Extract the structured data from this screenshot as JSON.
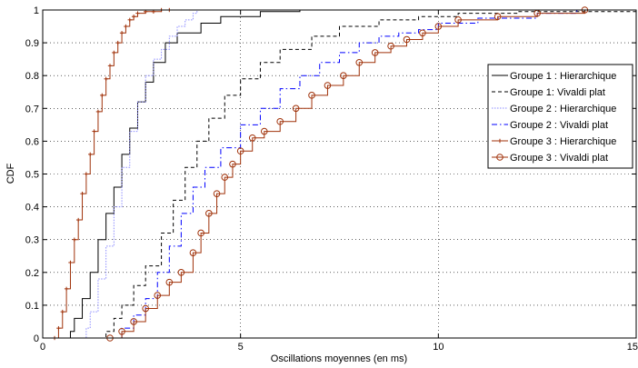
{
  "chart_data": {
    "type": "line",
    "title": "",
    "xlabel": "Oscillations moyennes (en ms)",
    "ylabel": "CDF",
    "xlim": [
      0,
      15
    ],
    "ylim": [
      0,
      1
    ],
    "xticks": [
      0,
      5,
      10,
      15
    ],
    "xtick_labels": [
      "0",
      "5",
      "10",
      "15"
    ],
    "yticks": [
      0,
      0.1,
      0.2,
      0.3,
      0.4,
      0.5,
      0.6,
      0.7,
      0.8,
      0.9,
      1
    ],
    "ytick_labels": [
      "0",
      "0.1",
      "0.2",
      "0.3",
      "0.4",
      "0.5",
      "0.6",
      "0.7",
      "0.8",
      "0.9",
      "1"
    ],
    "grid": true,
    "legend_position": "right",
    "series": [
      {
        "name": "Groupe 1 : Hierarchique",
        "color": "#000000",
        "style": "solid",
        "marker": "none",
        "x": [
          0.6,
          0.7,
          0.8,
          1.0,
          1.2,
          1.4,
          1.6,
          1.8,
          2.0,
          2.2,
          2.4,
          2.6,
          2.8,
          3.1,
          3.4,
          4.0,
          4.5,
          5.5,
          6.5
        ],
        "y": [
          0.0,
          0.02,
          0.06,
          0.12,
          0.2,
          0.3,
          0.38,
          0.46,
          0.56,
          0.64,
          0.72,
          0.78,
          0.84,
          0.9,
          0.93,
          0.96,
          0.98,
          0.995,
          1.0
        ]
      },
      {
        "name": "Groupe 1: Vivaldi plat",
        "color": "#000000",
        "style": "dashed",
        "marker": "none",
        "x": [
          1.3,
          1.6,
          1.8,
          2.0,
          2.3,
          2.6,
          3.0,
          3.3,
          3.6,
          3.9,
          4.2,
          4.6,
          5.0,
          5.5,
          6.0,
          6.8,
          7.5,
          8.5,
          9.5,
          10.5,
          12.0,
          15.0
        ],
        "y": [
          0.0,
          0.02,
          0.06,
          0.1,
          0.16,
          0.22,
          0.32,
          0.42,
          0.52,
          0.6,
          0.67,
          0.74,
          0.79,
          0.84,
          0.88,
          0.92,
          0.95,
          0.97,
          0.98,
          0.99,
          0.995,
          1.0
        ]
      },
      {
        "name": "Groupe 2 : Hierarchique",
        "color": "#8c8cff",
        "style": "dotted",
        "marker": "none",
        "x": [
          0.9,
          1.1,
          1.2,
          1.4,
          1.6,
          1.8,
          2.0,
          2.2,
          2.4,
          2.6,
          2.8,
          3.0,
          3.2,
          3.4,
          3.6,
          3.8,
          3.9
        ],
        "y": [
          0.0,
          0.03,
          0.08,
          0.18,
          0.28,
          0.4,
          0.52,
          0.63,
          0.72,
          0.8,
          0.85,
          0.88,
          0.92,
          0.95,
          0.97,
          0.99,
          1.0
        ]
      },
      {
        "name": "Groupe 2 : Vivaldi plat",
        "color": "#0000ff",
        "style": "dashdot",
        "marker": "none",
        "x": [
          1.7,
          2.0,
          2.3,
          2.6,
          2.9,
          3.2,
          3.5,
          3.8,
          4.1,
          4.5,
          5.0,
          5.5,
          6.0,
          6.5,
          7.0,
          7.5,
          8.0,
          8.5,
          9.0,
          9.5,
          10.0,
          11.0,
          12.5,
          13.5
        ],
        "y": [
          0.0,
          0.03,
          0.07,
          0.12,
          0.2,
          0.28,
          0.38,
          0.46,
          0.52,
          0.58,
          0.65,
          0.7,
          0.76,
          0.8,
          0.84,
          0.87,
          0.9,
          0.92,
          0.93,
          0.94,
          0.96,
          0.975,
          0.99,
          1.0
        ]
      },
      {
        "name": "Groupe 3 : Hierarchique",
        "color": "#a0320a",
        "style": "solid",
        "marker": "plus",
        "x": [
          0.3,
          0.4,
          0.5,
          0.6,
          0.7,
          0.8,
          0.9,
          1.0,
          1.1,
          1.2,
          1.3,
          1.4,
          1.5,
          1.6,
          1.7,
          1.8,
          1.9,
          2.0,
          2.1,
          2.2,
          2.3,
          2.4,
          2.6,
          2.8,
          3.0,
          3.2
        ],
        "y": [
          0.0,
          0.03,
          0.08,
          0.15,
          0.23,
          0.3,
          0.36,
          0.44,
          0.5,
          0.56,
          0.63,
          0.69,
          0.74,
          0.79,
          0.83,
          0.87,
          0.9,
          0.93,
          0.95,
          0.97,
          0.98,
          0.99,
          0.995,
          0.995,
          1.0,
          1.0
        ]
      },
      {
        "name": "Groupe 3 : Vivaldi plat",
        "color": "#a0320a",
        "style": "solid",
        "marker": "circle",
        "x": [
          1.7,
          2.0,
          2.3,
          2.6,
          2.9,
          3.2,
          3.5,
          3.8,
          4.0,
          4.2,
          4.4,
          4.6,
          4.8,
          5.0,
          5.3,
          5.6,
          6.0,
          6.4,
          6.8,
          7.2,
          7.6,
          8.0,
          8.4,
          8.8,
          9.2,
          9.6,
          10.0,
          10.5,
          11.5,
          12.5,
          13.7
        ],
        "y": [
          0.0,
          0.02,
          0.05,
          0.09,
          0.13,
          0.17,
          0.2,
          0.26,
          0.32,
          0.38,
          0.44,
          0.49,
          0.53,
          0.57,
          0.61,
          0.63,
          0.66,
          0.7,
          0.74,
          0.77,
          0.8,
          0.84,
          0.87,
          0.89,
          0.91,
          0.93,
          0.95,
          0.97,
          0.98,
          0.99,
          1.0
        ]
      }
    ]
  }
}
